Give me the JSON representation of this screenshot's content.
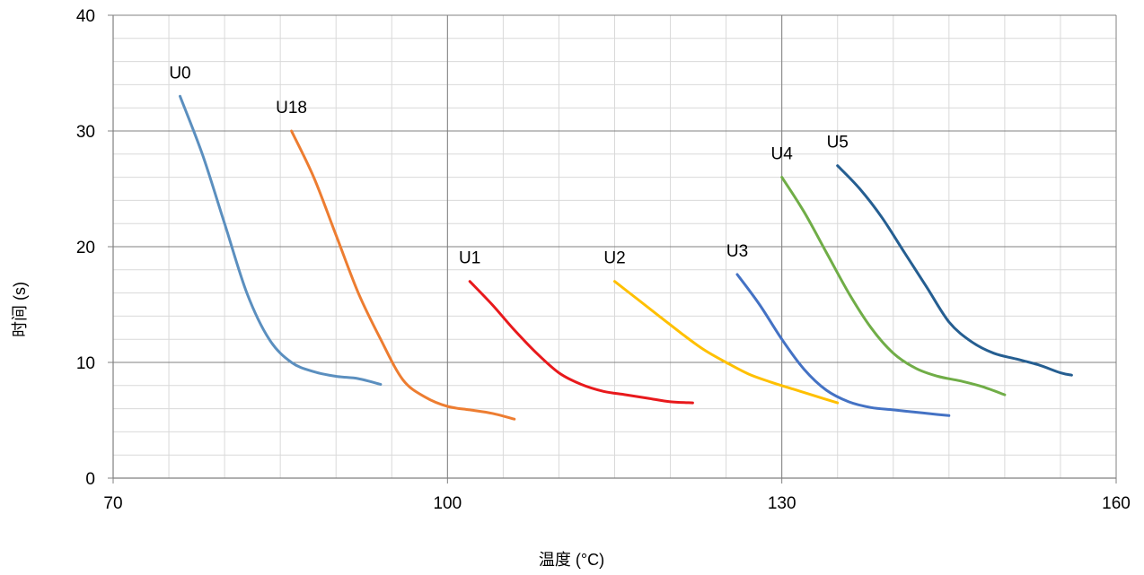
{
  "chart_data": {
    "type": "line",
    "title": "",
    "xlabel": "温度 (°C)",
    "ylabel": "时间 (s)",
    "xlim": [
      70,
      160
    ],
    "ylim": [
      0,
      40
    ],
    "x_ticks": [
      70,
      100,
      130,
      160
    ],
    "y_ticks": [
      0,
      10,
      20,
      30,
      40
    ],
    "x_major_step": 30,
    "x_minor_step": 5,
    "y_major_step": 10,
    "y_minor_step": 2,
    "grid": true,
    "legend": "none",
    "series": [
      {
        "name": "U0",
        "color": "#5b8fbf",
        "points": [
          [
            76,
            33
          ],
          [
            78,
            28
          ],
          [
            80,
            22
          ],
          [
            82,
            16
          ],
          [
            84,
            12
          ],
          [
            86,
            10
          ],
          [
            88,
            9.2
          ],
          [
            90,
            8.8
          ],
          [
            92,
            8.6
          ],
          [
            94,
            8.1
          ]
        ]
      },
      {
        "name": "U18",
        "color": "#ed7d31",
        "points": [
          [
            86,
            30
          ],
          [
            88,
            26
          ],
          [
            90,
            21
          ],
          [
            92,
            16
          ],
          [
            94,
            12
          ],
          [
            96,
            8.5
          ],
          [
            98,
            7
          ],
          [
            100,
            6.2
          ],
          [
            102,
            5.9
          ],
          [
            104,
            5.6
          ],
          [
            106,
            5.1
          ]
        ]
      },
      {
        "name": "U1",
        "color": "#e8191c",
        "points": [
          [
            102,
            17
          ],
          [
            104,
            15
          ],
          [
            106,
            12.8
          ],
          [
            108,
            10.8
          ],
          [
            110,
            9.1
          ],
          [
            112,
            8.1
          ],
          [
            114,
            7.5
          ],
          [
            116,
            7.2
          ],
          [
            118,
            6.9
          ],
          [
            120,
            6.6
          ],
          [
            122,
            6.5
          ]
        ]
      },
      {
        "name": "U2",
        "color": "#ffc000",
        "points": [
          [
            115,
            17
          ],
          [
            117,
            15.5
          ],
          [
            119,
            14
          ],
          [
            121,
            12.5
          ],
          [
            123,
            11.1
          ],
          [
            125,
            10
          ],
          [
            127,
            9
          ],
          [
            129,
            8.3
          ],
          [
            131,
            7.7
          ],
          [
            133,
            7.1
          ],
          [
            135,
            6.5
          ]
        ]
      },
      {
        "name": "U3",
        "color": "#4472c4",
        "points": [
          [
            126,
            17.6
          ],
          [
            128,
            15
          ],
          [
            130,
            12
          ],
          [
            132,
            9.4
          ],
          [
            134,
            7.6
          ],
          [
            136,
            6.6
          ],
          [
            138,
            6.1
          ],
          [
            140,
            5.9
          ],
          [
            142,
            5.7
          ],
          [
            144,
            5.5
          ],
          [
            145,
            5.4
          ]
        ]
      },
      {
        "name": "U4",
        "color": "#70ad47",
        "points": [
          [
            130,
            26
          ],
          [
            132,
            23
          ],
          [
            134,
            19.5
          ],
          [
            136,
            16
          ],
          [
            138,
            13
          ],
          [
            140,
            10.8
          ],
          [
            142,
            9.5
          ],
          [
            144,
            8.8
          ],
          [
            146,
            8.4
          ],
          [
            148,
            7.9
          ],
          [
            150,
            7.2
          ]
        ]
      },
      {
        "name": "U5",
        "color": "#255e91",
        "points": [
          [
            135,
            27
          ],
          [
            137,
            25
          ],
          [
            139,
            22.5
          ],
          [
            141,
            19.5
          ],
          [
            143,
            16.5
          ],
          [
            145,
            13.5
          ],
          [
            147,
            11.8
          ],
          [
            149,
            10.8
          ],
          [
            151,
            10.3
          ],
          [
            153,
            9.8
          ],
          [
            155,
            9.1
          ],
          [
            156,
            8.9
          ]
        ]
      }
    ]
  }
}
